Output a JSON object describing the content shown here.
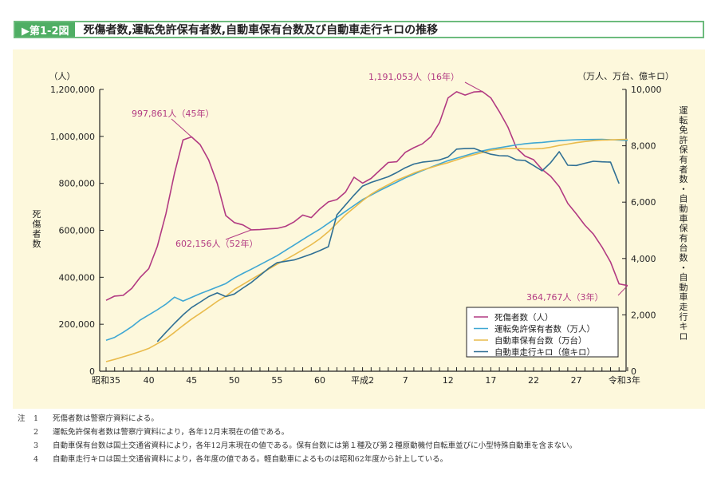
{
  "figure_number": "▶第1-2図",
  "title": "死傷者数,運転免許保有者数,自動車保有台数及び自動車走行キロの推移",
  "chart_data": {
    "type": "line",
    "title": "死傷者数,運転免許保有者数,自動車保有台数及び自動車走行キロの推移",
    "x": [
      1960,
      1961,
      1962,
      1963,
      1964,
      1965,
      1966,
      1967,
      1968,
      1969,
      1970,
      1971,
      1972,
      1973,
      1974,
      1975,
      1976,
      1977,
      1978,
      1979,
      1980,
      1981,
      1982,
      1983,
      1984,
      1985,
      1986,
      1987,
      1988,
      1989,
      1990,
      1991,
      1992,
      1993,
      1994,
      1995,
      1996,
      1997,
      1998,
      1999,
      2000,
      2001,
      2002,
      2003,
      2004,
      2005,
      2006,
      2007,
      2008,
      2009,
      2010,
      2011,
      2012,
      2013,
      2014,
      2015,
      2016,
      2017,
      2018,
      2019,
      2020,
      2021
    ],
    "xlim": [
      1960,
      2021
    ],
    "x_ticks": [
      {
        "year": 1960,
        "label": "昭和35"
      },
      {
        "year": 1965,
        "label": "40"
      },
      {
        "year": 1970,
        "label": "45"
      },
      {
        "year": 1975,
        "label": "50"
      },
      {
        "year": 1980,
        "label": "55"
      },
      {
        "year": 1985,
        "label": "60"
      },
      {
        "year": 1990,
        "label": "平成2"
      },
      {
        "year": 1995,
        "label": "7"
      },
      {
        "year": 2000,
        "label": "12"
      },
      {
        "year": 2005,
        "label": "17"
      },
      {
        "year": 2010,
        "label": "22"
      },
      {
        "year": 2015,
        "label": "27"
      },
      {
        "year": 2021,
        "label": "令和3年"
      }
    ],
    "y_left": {
      "label": "死傷者数",
      "unit": "（人）",
      "lim": [
        0,
        1200000
      ],
      "ticks": [
        "0",
        "200,000",
        "400,000",
        "600,000",
        "800,000",
        "1,000,000",
        "1,200,000"
      ],
      "tick_values": [
        0,
        200000,
        400000,
        600000,
        800000,
        1000000,
        1200000
      ]
    },
    "y_right": {
      "label": "運転免許保有者数・自動車保有台数・自動車走行キロ",
      "unit": "（万人、万台、億キロ）",
      "lim": [
        0,
        10000
      ],
      "ticks": [
        "0",
        "2,000",
        "4,000",
        "6,000",
        "8,000",
        "10,000"
      ],
      "tick_values": [
        0,
        2000,
        4000,
        6000,
        8000,
        10000
      ]
    },
    "grid": false,
    "legend_position": "bottom-right",
    "series": [
      {
        "name": "死傷者数（人）",
        "axis": "left",
        "color": "#b23a82",
        "values": [
          302000,
          320000,
          323000,
          353000,
          400000,
          437000,
          532000,
          670000,
          843000,
          985000,
          997861,
          965000,
          900000,
          800000,
          663000,
          633000,
          623000,
          602156,
          603000,
          606000,
          608000,
          617000,
          636000,
          665000,
          654000,
          691000,
          721000,
          731000,
          763000,
          826000,
          801000,
          821000,
          855000,
          889000,
          892000,
          932000,
          952000,
          968000,
          999000,
          1059000,
          1164000,
          1190000,
          1176000,
          1189000,
          1191053,
          1164000,
          1105000,
          1040000,
          950000,
          916000,
          901000,
          859000,
          830000,
          786000,
          715000,
          670000,
          622000,
          584000,
          529000,
          465000,
          372000,
          364767
        ]
      },
      {
        "name": "運転免許保有者数（万人）",
        "axis": "right",
        "color": "#3fa7d3",
        "values": [
          1100,
          1200,
          1380,
          1580,
          1820,
          2000,
          2180,
          2380,
          2630,
          2490,
          2620,
          2750,
          2870,
          2990,
          3110,
          3310,
          3470,
          3620,
          3780,
          3940,
          4100,
          4290,
          4480,
          4670,
          4860,
          5040,
          5250,
          5460,
          5670,
          5880,
          6090,
          6250,
          6410,
          6560,
          6710,
          6860,
          6990,
          7120,
          7240,
          7360,
          7470,
          7560,
          7650,
          7740,
          7820,
          7880,
          7930,
          7980,
          8030,
          8070,
          8100,
          8120,
          8150,
          8180,
          8200,
          8215,
          8220,
          8225,
          8230,
          8215,
          8200,
          8190
        ]
      },
      {
        "name": "自動車保有台数（万台）",
        "axis": "right",
        "color": "#e9bb4c",
        "values": [
          340,
          420,
          510,
          600,
          700,
          810,
          980,
          1150,
          1380,
          1620,
          1850,
          2050,
          2260,
          2480,
          2660,
          2900,
          3080,
          3260,
          3440,
          3620,
          3800,
          3960,
          4130,
          4310,
          4490,
          4700,
          4950,
          5250,
          5550,
          5800,
          6050,
          6280,
          6460,
          6620,
          6780,
          6900,
          7030,
          7140,
          7230,
          7320,
          7400,
          7500,
          7600,
          7680,
          7760,
          7840,
          7880,
          7900,
          7900,
          7890,
          7890,
          7900,
          7950,
          8010,
          8060,
          8110,
          8150,
          8180,
          8200,
          8210,
          8220,
          8230
        ]
      },
      {
        "name": "自動車走行キロ（億キロ）",
        "axis": "right",
        "color": "#2f6f94",
        "values": [
          null,
          null,
          null,
          null,
          null,
          null,
          1050,
          1380,
          1700,
          2000,
          2260,
          2450,
          2650,
          2780,
          2650,
          2740,
          2950,
          3150,
          3400,
          3650,
          3850,
          3900,
          3950,
          4050,
          4160,
          4280,
          4420,
          5550,
          5900,
          6250,
          6570,
          6700,
          6800,
          6900,
          7050,
          7220,
          7350,
          7420,
          7450,
          7500,
          7600,
          7880,
          7900,
          7910,
          7800,
          7700,
          7650,
          7640,
          7500,
          7480,
          7300,
          7110,
          7400,
          7790,
          7310,
          7300,
          7380,
          7450,
          7430,
          7420,
          6660,
          null
        ]
      }
    ],
    "annotations": [
      {
        "text": "997,861人（45年）",
        "year": 1970,
        "value": 997861
      },
      {
        "text": "602,156人（52年）",
        "year": 1977,
        "value": 602156
      },
      {
        "text": "1,191,053人（16年）",
        "year": 2004,
        "value": 1191053
      },
      {
        "text": "364,767人（3年）",
        "year": 2021,
        "value": 364767
      }
    ]
  },
  "notes_label": "注",
  "notes": [
    {
      "num": "1",
      "text": "死傷者数は警察庁資料による。"
    },
    {
      "num": "2",
      "text": "運転免許保有者数は警察庁資料により，各年12月末現在の値である。"
    },
    {
      "num": "3",
      "text": "自動車保有台数は国土交通省資料により，各年12月末現在の値である。保有台数には第１種及び第２種原動機付自転車並びに小型特殊自動車を含まない。"
    },
    {
      "num": "4",
      "text": "自動車走行キロは国土交通省資料により，各年度の値である。軽自動車によるものは昭和62年度から計上している。"
    }
  ]
}
